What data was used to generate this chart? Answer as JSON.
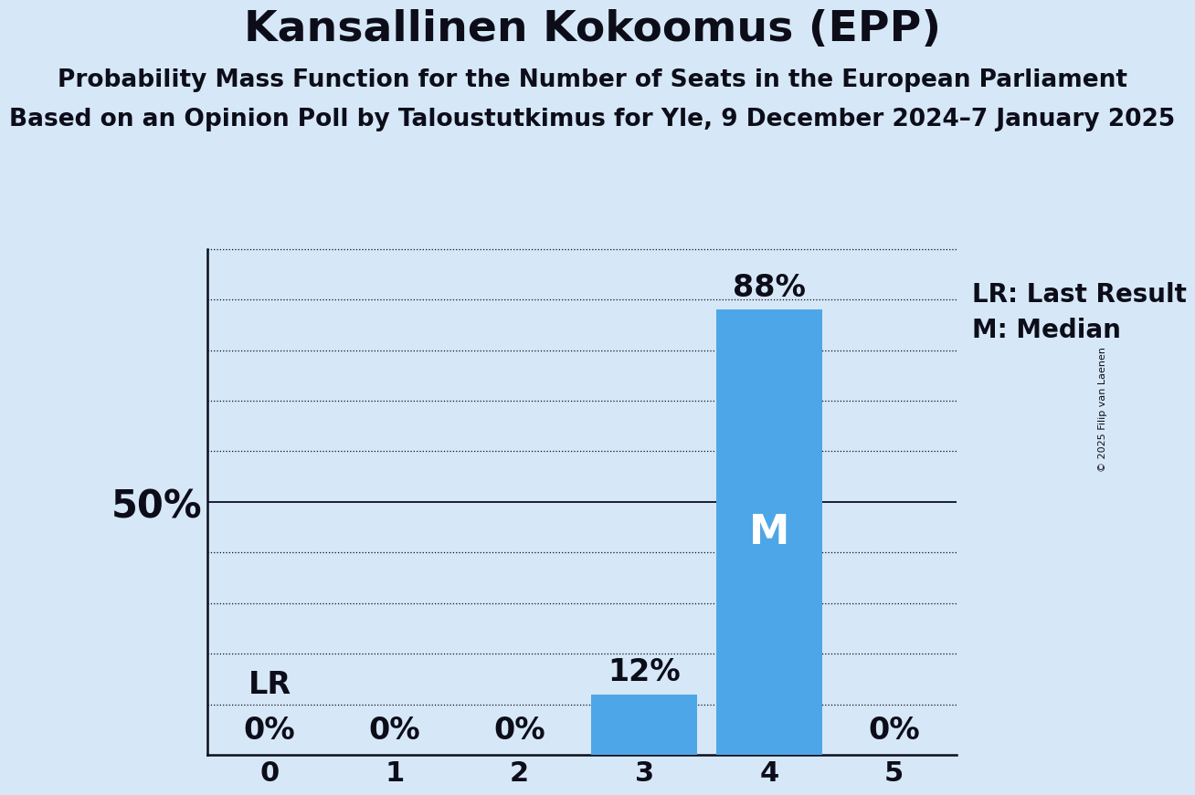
{
  "title": "Kansallinen Kokoomus (EPP)",
  "subtitle1": "Probability Mass Function for the Number of Seats in the European Parliament",
  "subtitle2": "Based on an Opinion Poll by Taloustutkimus for Yle, 9 December 2024–7 January 2025",
  "copyright": "© 2025 Filip van Laenen",
  "categories": [
    0,
    1,
    2,
    3,
    4,
    5
  ],
  "values": [
    0,
    0,
    0,
    12,
    88,
    0
  ],
  "bar_color": "#4da6e8",
  "background_color": "#d6e8f7",
  "median_seat": 4,
  "last_result_seat": 0,
  "ylabel_50": "50%",
  "legend_lr": "LR: Last Result",
  "legend_m": "M: Median",
  "ylim": [
    0,
    100
  ],
  "yticks": [
    0,
    10,
    20,
    30,
    40,
    50,
    60,
    70,
    80,
    90,
    100
  ],
  "title_fontsize": 34,
  "subtitle_fontsize": 19,
  "label_fontsize": 22,
  "tick_fontsize": 22,
  "bar_label_fontsize": 24,
  "median_label_fontsize": 32,
  "fifty_label_fontsize": 30,
  "legend_fontsize": 20
}
